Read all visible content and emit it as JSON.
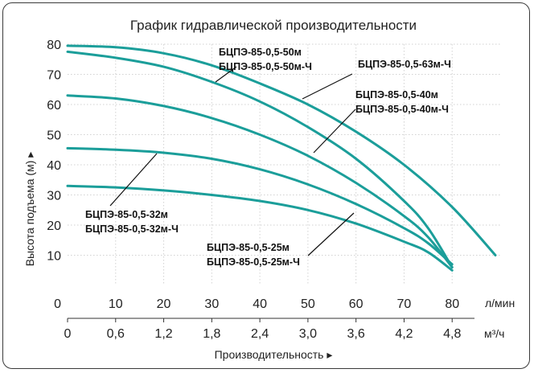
{
  "chart_data": {
    "type": "line",
    "title": "График гидравлической производительности",
    "ylabel": "Высота подъема (м) ▸",
    "xlabel": "Производительность ▸",
    "x_unit_primary": "л/мин",
    "x_unit_secondary": "м³/ч",
    "xlim": [
      0,
      90
    ],
    "ylim": [
      0,
      80
    ],
    "yticks": [
      "0",
      "10",
      "20",
      "30",
      "40",
      "50",
      "60",
      "70",
      "80"
    ],
    "xticks_primary": [
      "10",
      "20",
      "30",
      "40",
      "50",
      "60",
      "70",
      "80"
    ],
    "xticks_secondary": [
      "0",
      "0,6",
      "1,2",
      "1,8",
      "2,4",
      "3,0",
      "3,6",
      "4,2",
      "4,8"
    ],
    "grid": true,
    "series": [
      {
        "labels": [
          "БЦПЭ-85-0,5-63м-Ч"
        ],
        "x": [
          0,
          10,
          20,
          30,
          40,
          50,
          60,
          70,
          80,
          89
        ],
        "y": [
          79.5,
          79,
          77,
          73,
          67,
          60,
          51,
          40,
          26,
          10
        ]
      },
      {
        "labels": [
          "БЦПЭ-85-0,5-50м",
          "БЦПЭ-85-0,5-50м-Ч"
        ],
        "x": [
          0,
          10,
          20,
          30,
          40,
          50,
          60,
          70,
          75,
          80
        ],
        "y": [
          77.5,
          75.5,
          72.5,
          67.5,
          61,
          52.5,
          42,
          28,
          19,
          6
        ]
      },
      {
        "labels": [
          "БЦПЭ-85-0,5-40м",
          "БЦПЭ-85-0,5-40м-Ч"
        ],
        "x": [
          0,
          10,
          20,
          30,
          40,
          50,
          60,
          70,
          75,
          80
        ],
        "y": [
          63,
          62,
          59.5,
          55.5,
          50,
          43,
          34,
          23,
          16,
          6
        ]
      },
      {
        "labels": [
          "БЦПЭ-85-0,5-32м",
          "БЦПЭ-85-0,5-32м-Ч"
        ],
        "x": [
          0,
          10,
          20,
          30,
          40,
          50,
          60,
          70,
          75,
          80
        ],
        "y": [
          45.5,
          45,
          44,
          42,
          38.5,
          33.5,
          27,
          19,
          14,
          7
        ]
      },
      {
        "labels": [
          "БЦПЭ-85-0,5-25м",
          "БЦПЭ-85-0,5-25м-Ч"
        ],
        "x": [
          0,
          10,
          20,
          30,
          40,
          50,
          60,
          70,
          75,
          80
        ],
        "y": [
          33,
          32.5,
          31.5,
          30,
          28,
          25,
          20.5,
          14.5,
          11,
          5
        ]
      }
    ]
  }
}
